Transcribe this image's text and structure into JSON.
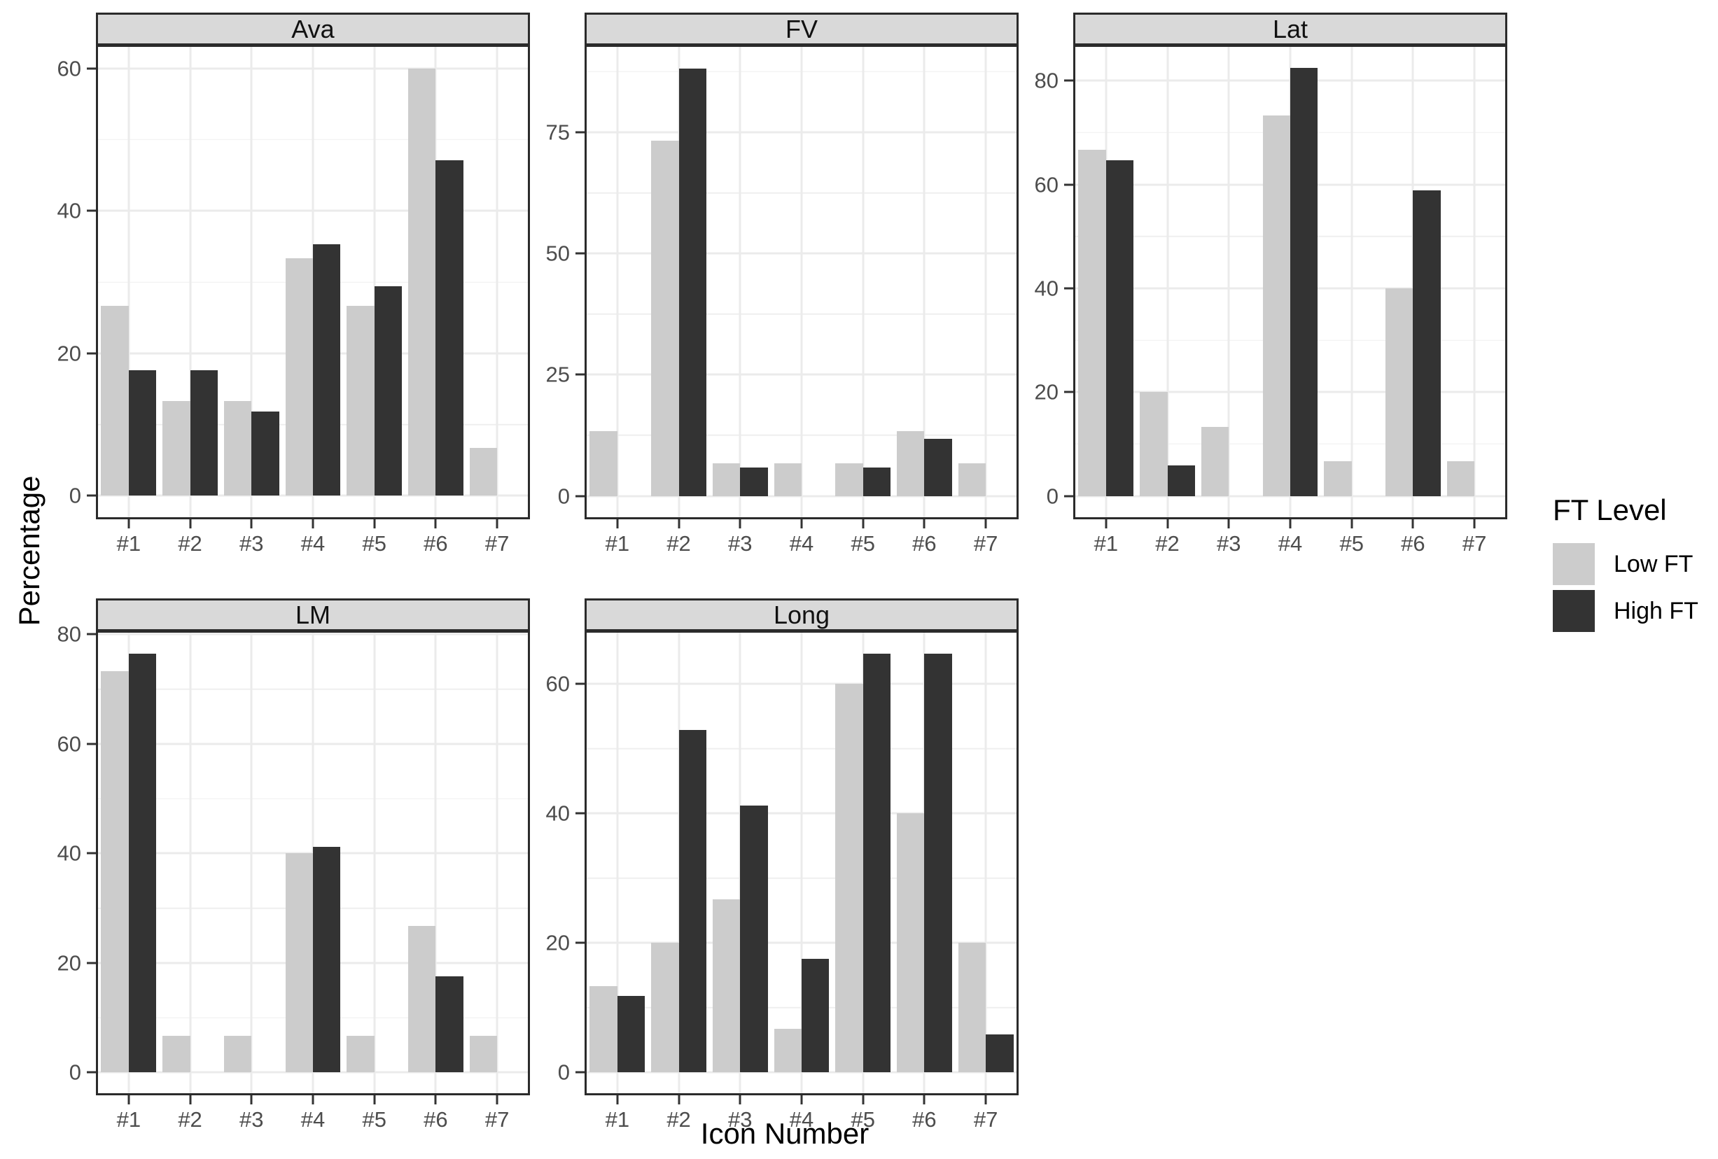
{
  "chart_data": {
    "type": "bar",
    "title": "",
    "xlabel": "Icon Number",
    "ylabel": "Percentage",
    "categories": [
      "#1",
      "#2",
      "#3",
      "#4",
      "#5",
      "#6",
      "#7"
    ],
    "grid": true,
    "legend": {
      "title": "FT Level",
      "position": "right",
      "entries": [
        {
          "label": "Low FT",
          "color": "#cccccc"
        },
        {
          "label": "High FT",
          "color": "#333333"
        }
      ]
    },
    "facets": [
      {
        "label": "Ava",
        "ylim": [
          -3,
          63
        ],
        "major_ticks": [
          0,
          20,
          40,
          60
        ],
        "minor_ticks": [
          10,
          30,
          50
        ],
        "series": [
          {
            "name": "Low FT",
            "values": [
              26.7,
              13.3,
              13.3,
              33.3,
              26.7,
              60.0,
              6.7
            ]
          },
          {
            "name": "High FT",
            "values": [
              17.6,
              17.6,
              11.8,
              35.3,
              29.4,
              47.1,
              0
            ]
          }
        ]
      },
      {
        "label": "FV",
        "ylim": [
          -4.4,
          92.6
        ],
        "major_ticks": [
          0,
          25,
          50,
          75
        ],
        "minor_ticks": [
          12.5,
          37.5,
          62.5,
          87.5
        ],
        "series": [
          {
            "name": "Low FT",
            "values": [
              13.3,
              73.3,
              6.7,
              6.7,
              6.7,
              13.3,
              6.7
            ]
          },
          {
            "name": "High FT",
            "values": [
              0,
              88.2,
              5.9,
              0,
              5.9,
              11.8,
              0
            ]
          }
        ]
      },
      {
        "label": "Lat",
        "ylim": [
          -4.1,
          86.5
        ],
        "major_ticks": [
          0,
          20,
          40,
          60,
          80
        ],
        "minor_ticks": [
          10,
          30,
          50,
          70
        ],
        "series": [
          {
            "name": "Low FT",
            "values": [
              66.7,
              20.0,
              13.3,
              73.3,
              6.7,
              40.0,
              6.7
            ]
          },
          {
            "name": "High FT",
            "values": [
              64.7,
              5.9,
              0,
              82.4,
              0,
              58.8,
              0
            ]
          }
        ]
      },
      {
        "label": "LM",
        "ylim": [
          -3.8,
          80.3
        ],
        "major_ticks": [
          0,
          20,
          40,
          60,
          80
        ],
        "minor_ticks": [
          10,
          30,
          50,
          70
        ],
        "series": [
          {
            "name": "Low FT",
            "values": [
              73.3,
              6.7,
              6.7,
              40.0,
              6.7,
              26.7,
              6.7
            ]
          },
          {
            "name": "High FT",
            "values": [
              76.5,
              0,
              0,
              41.2,
              0,
              17.6,
              0
            ]
          }
        ]
      },
      {
        "label": "Long",
        "ylim": [
          -3.2,
          67.9
        ],
        "major_ticks": [
          0,
          20,
          40,
          60
        ],
        "minor_ticks": [
          10,
          30,
          50
        ],
        "series": [
          {
            "name": "Low FT",
            "values": [
              13.3,
              20.0,
              26.7,
              6.7,
              60.0,
              40.0,
              20.0
            ]
          },
          {
            "name": "High FT",
            "values": [
              11.8,
              52.9,
              41.2,
              17.6,
              64.7,
              64.7,
              5.9
            ]
          }
        ]
      }
    ],
    "colors": {
      "low_ft": "#cccccc",
      "high_ft": "#333333",
      "strip_background": "#d9d9d9",
      "panel_border": "#2b2b2b",
      "grid_major": "#ebebeb",
      "grid_minor": "#efefef",
      "tick_text": "#4d4d4d"
    }
  }
}
